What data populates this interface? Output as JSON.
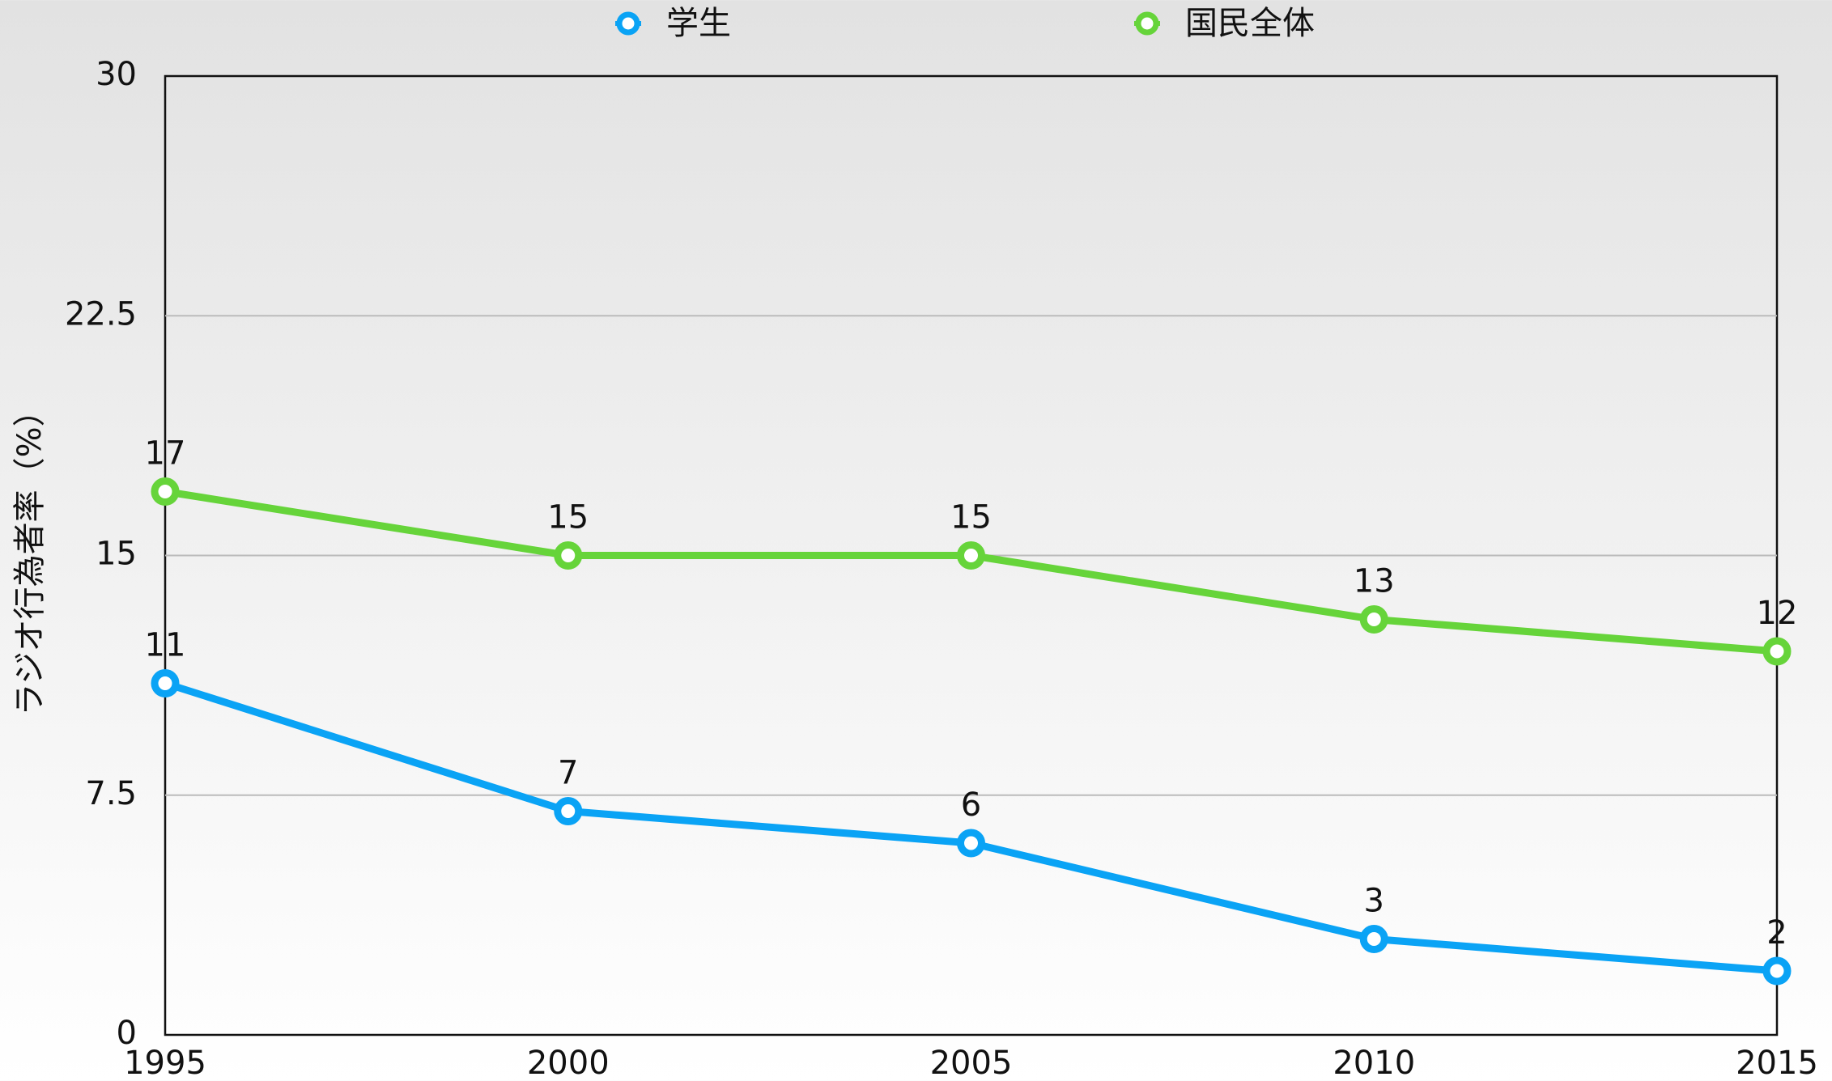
{
  "chart_data": {
    "type": "line",
    "y_label": "ラジオ行為者率（%）",
    "x": [
      1995,
      2000,
      2005,
      2010,
      2015
    ],
    "series": [
      {
        "name": "学生",
        "color": "#0aa3f5",
        "values": [
          11,
          7,
          6,
          3,
          2
        ]
      },
      {
        "name": "国民全体",
        "color": "#66d43a",
        "values": [
          17,
          15,
          15,
          13,
          12
        ]
      }
    ],
    "xlim": [
      1995,
      2015
    ],
    "xticks": [
      1995,
      2000,
      2005,
      2010,
      2015
    ],
    "ylim": [
      0,
      30
    ],
    "yticks": [
      0,
      7.5,
      15,
      22.5,
      30
    ],
    "grid": true,
    "legend": "top"
  }
}
